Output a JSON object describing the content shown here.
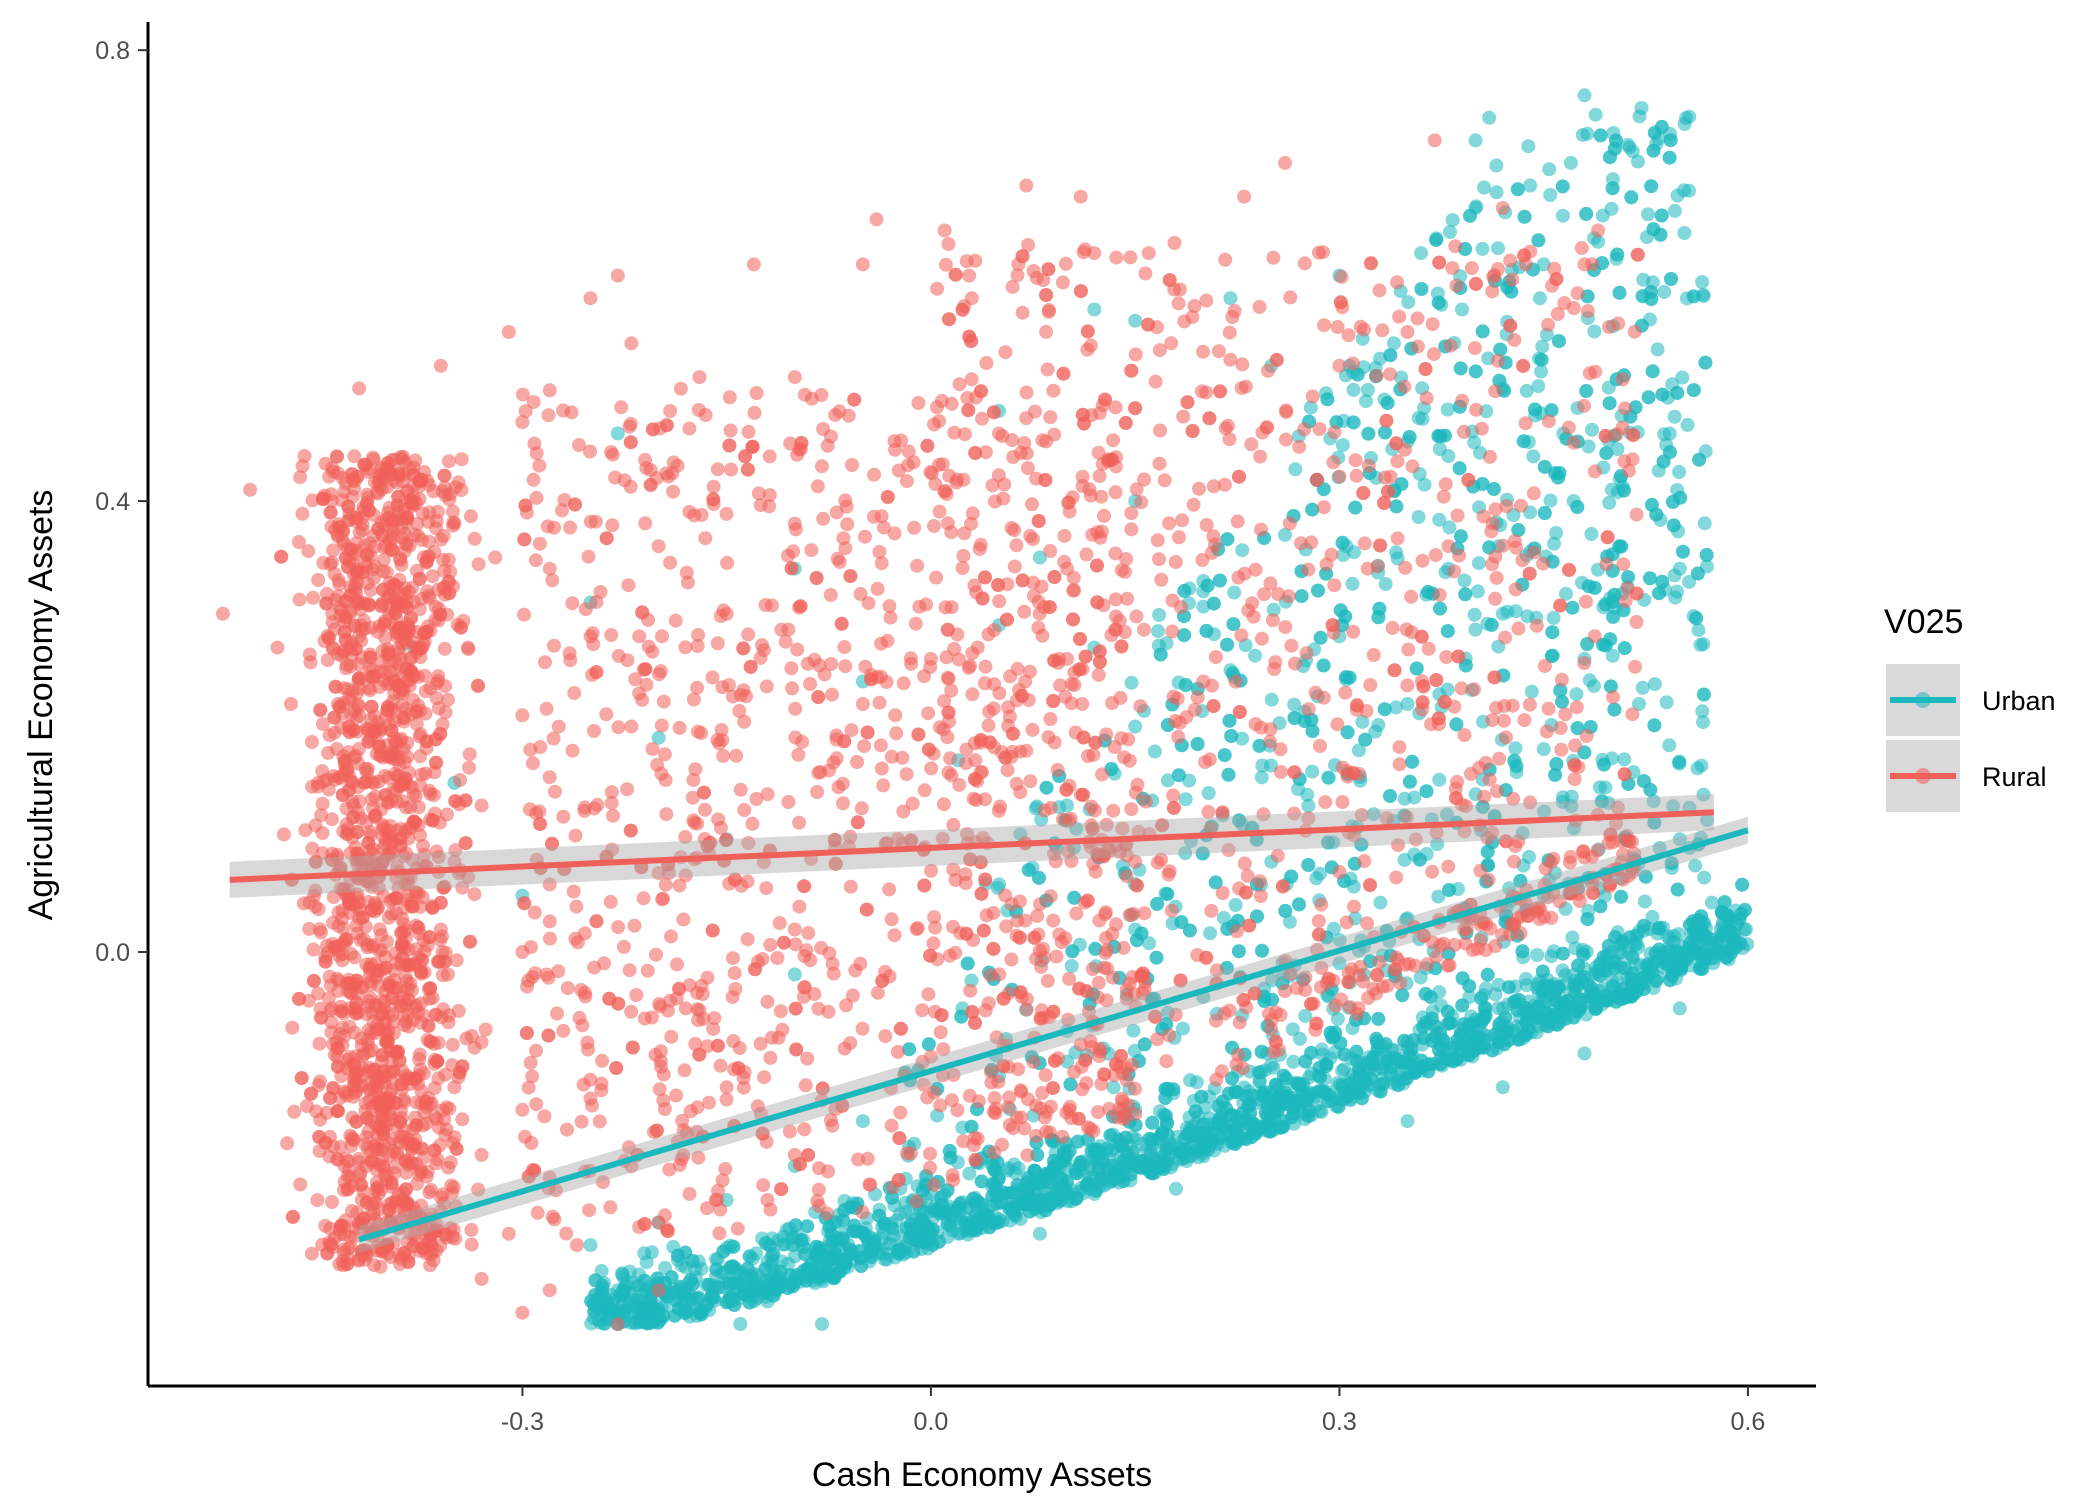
{
  "chart_data": {
    "type": "scatter",
    "title": "",
    "xlabel": "Cash Economy Assets",
    "ylabel": "Agricultural Economy Assets",
    "xlim": [
      -0.575,
      0.65
    ],
    "ylim": [
      -0.385,
      0.825
    ],
    "x_ticks": [
      -0.3,
      0.0,
      0.3,
      0.6
    ],
    "x_tick_labels": [
      "-0.3",
      "0.0",
      "0.3",
      "0.6"
    ],
    "y_ticks": [
      0.0,
      0.4,
      0.8
    ],
    "y_tick_labels": [
      "0.0",
      "0.4",
      "0.8"
    ],
    "grid": false,
    "legend": {
      "title": "V025",
      "position": "right",
      "entries": [
        "Urban",
        "Rural"
      ]
    },
    "point_alpha": 0.55,
    "series": [
      {
        "name": "Urban",
        "color": "#1bb8bd",
        "approx_points": 3600,
        "points_sample": [
          [
            0.48,
            0.76
          ],
          [
            0.41,
            0.74
          ],
          [
            0.4,
            0.72
          ],
          [
            0.47,
            0.7
          ],
          [
            0.44,
            0.68
          ],
          [
            0.4,
            0.66
          ],
          [
            0.49,
            0.63
          ],
          [
            0.36,
            0.62
          ],
          [
            0.45,
            0.61
          ],
          [
            0.3,
            0.6
          ],
          [
            0.39,
            0.57
          ],
          [
            0.22,
            0.58
          ],
          [
            0.34,
            0.54
          ],
          [
            0.12,
            0.57
          ],
          [
            0.15,
            0.56
          ],
          [
            0.42,
            0.5
          ],
          [
            0.25,
            0.52
          ],
          [
            0.31,
            0.47
          ],
          [
            0.54,
            0.45
          ],
          [
            0.38,
            0.44
          ],
          [
            -0.23,
            0.46
          ],
          [
            0.05,
            0.48
          ],
          [
            0.34,
            0.41
          ],
          [
            0.5,
            0.41
          ],
          [
            0.15,
            0.4
          ],
          [
            0.44,
            0.39
          ],
          [
            0.26,
            0.37
          ],
          [
            0.08,
            0.35
          ],
          [
            -0.1,
            0.34
          ],
          [
            0.38,
            0.34
          ],
          [
            0.55,
            0.34
          ],
          [
            0.2,
            0.32
          ],
          [
            -0.25,
            0.31
          ],
          [
            0.42,
            0.3
          ],
          [
            0.05,
            0.29
          ],
          [
            0.3,
            0.28
          ],
          [
            0.12,
            0.27
          ],
          [
            -0.38,
            0.27
          ],
          [
            0.48,
            0.26
          ],
          [
            0.22,
            0.25
          ],
          [
            -0.05,
            0.24
          ],
          [
            0.35,
            0.22
          ],
          [
            0.52,
            0.22
          ],
          [
            0.15,
            0.2
          ],
          [
            -0.2,
            0.19
          ],
          [
            0.45,
            0.18
          ],
          [
            0.02,
            0.17
          ],
          [
            0.28,
            0.16
          ],
          [
            -0.35,
            0.15
          ],
          [
            0.4,
            0.14
          ],
          [
            0.1,
            0.13
          ],
          [
            0.55,
            0.1
          ],
          [
            -0.15,
            0.1
          ],
          [
            0.25,
            0.08
          ],
          [
            0.05,
            0.06
          ],
          [
            0.45,
            0.05
          ],
          [
            -0.3,
            0.05
          ],
          [
            0.35,
            0.03
          ],
          [
            0.15,
            0.02
          ],
          [
            0.58,
            0.02
          ],
          [
            0.5,
            0.0
          ],
          [
            0.3,
            -0.01
          ],
          [
            -0.1,
            -0.02
          ],
          [
            0.45,
            -0.03
          ],
          [
            0.2,
            -0.04
          ],
          [
            0.55,
            -0.05
          ],
          [
            0.4,
            -0.06
          ],
          [
            0.1,
            -0.07
          ],
          [
            0.35,
            -0.08
          ],
          [
            0.48,
            -0.09
          ],
          [
            0.25,
            -0.1
          ],
          [
            0.05,
            -0.11
          ],
          [
            0.42,
            -0.12
          ],
          [
            0.3,
            -0.13
          ],
          [
            0.15,
            -0.14
          ],
          [
            -0.05,
            -0.15
          ],
          [
            0.2,
            -0.16
          ],
          [
            0.35,
            -0.15
          ],
          [
            0.1,
            -0.18
          ],
          [
            -0.1,
            -0.19
          ],
          [
            0.05,
            -0.2
          ],
          [
            0.18,
            -0.21
          ],
          [
            -0.15,
            -0.22
          ],
          [
            0.0,
            -0.23
          ],
          [
            -0.2,
            -0.24
          ],
          [
            0.08,
            -0.25
          ],
          [
            -0.25,
            -0.26
          ],
          [
            -0.1,
            -0.27
          ],
          [
            -0.18,
            -0.28
          ],
          [
            -0.08,
            -0.29
          ],
          [
            -0.12,
            -0.31
          ],
          [
            -0.2,
            -0.32
          ],
          [
            -0.14,
            -0.33
          ],
          [
            -0.08,
            -0.33
          ],
          [
            -0.23,
            -0.3
          ]
        ],
        "trend": {
          "x": [
            -0.42,
            0.6
          ],
          "y": [
            -0.255,
            0.108
          ]
        }
      },
      {
        "name": "Rural",
        "color": "#f0605a",
        "approx_points": 4300,
        "points_sample": [
          [
            0.37,
            0.72
          ],
          [
            0.26,
            0.7
          ],
          [
            0.07,
            0.68
          ],
          [
            0.11,
            0.67
          ],
          [
            0.23,
            0.67
          ],
          [
            0.42,
            0.66
          ],
          [
            -0.04,
            0.65
          ],
          [
            0.49,
            0.64
          ],
          [
            0.01,
            0.64
          ],
          [
            0.12,
            0.62
          ],
          [
            0.16,
            0.62
          ],
          [
            -0.13,
            0.61
          ],
          [
            -0.05,
            0.61
          ],
          [
            0.48,
            0.61
          ],
          [
            -0.23,
            0.6
          ],
          [
            0.06,
            0.59
          ],
          [
            -0.25,
            0.58
          ],
          [
            0.03,
            0.58
          ],
          [
            0.35,
            0.55
          ],
          [
            -0.31,
            0.55
          ],
          [
            -0.22,
            0.54
          ],
          [
            -0.42,
            0.5
          ],
          [
            -0.36,
            0.52
          ],
          [
            -0.17,
            0.51
          ],
          [
            -0.1,
            0.51
          ],
          [
            0.3,
            0.52
          ],
          [
            -0.46,
            0.44
          ],
          [
            -0.38,
            0.43
          ],
          [
            -0.3,
            0.47
          ],
          [
            0.05,
            0.46
          ],
          [
            -0.5,
            0.41
          ],
          [
            -0.44,
            0.4
          ],
          [
            -0.35,
            0.38
          ],
          [
            -0.4,
            0.36
          ],
          [
            -0.32,
            0.35
          ],
          [
            -0.52,
            0.3
          ],
          [
            -0.45,
            0.33
          ],
          [
            -0.37,
            0.32
          ],
          [
            -0.28,
            0.34
          ],
          [
            -0.2,
            0.36
          ],
          [
            -0.1,
            0.38
          ],
          [
            0.1,
            0.34
          ],
          [
            0.38,
            0.36
          ],
          [
            -0.48,
            0.27
          ],
          [
            -0.42,
            0.28
          ],
          [
            -0.34,
            0.27
          ],
          [
            -0.25,
            0.28
          ],
          [
            -0.15,
            0.3
          ],
          [
            0.0,
            0.26
          ],
          [
            0.2,
            0.24
          ],
          [
            -0.47,
            0.22
          ],
          [
            -0.39,
            0.23
          ],
          [
            -0.3,
            0.21
          ],
          [
            -0.22,
            0.2
          ],
          [
            -0.05,
            0.22
          ],
          [
            -0.45,
            0.15
          ],
          [
            -0.38,
            0.14
          ],
          [
            -0.33,
            0.13
          ],
          [
            -0.27,
            0.12
          ],
          [
            -0.12,
            0.14
          ],
          [
            -0.4,
            0.1
          ],
          [
            -0.35,
            0.08
          ],
          [
            -0.28,
            0.06
          ],
          [
            -0.2,
            0.07
          ],
          [
            0.15,
            0.08
          ],
          [
            -0.42,
            0.03
          ],
          [
            -0.36,
            0.02
          ],
          [
            -0.3,
            0.0
          ],
          [
            -0.24,
            -0.01
          ],
          [
            -0.1,
            0.02
          ],
          [
            -0.44,
            -0.05
          ],
          [
            -0.38,
            -0.06
          ],
          [
            -0.33,
            -0.08
          ],
          [
            -0.27,
            -0.07
          ],
          [
            -0.18,
            -0.05
          ],
          [
            -0.4,
            -0.11
          ],
          [
            -0.35,
            -0.12
          ],
          [
            -0.3,
            -0.14
          ],
          [
            -0.25,
            -0.13
          ],
          [
            -0.15,
            -0.12
          ],
          [
            -0.38,
            -0.17
          ],
          [
            -0.33,
            -0.18
          ],
          [
            -0.28,
            -0.2
          ],
          [
            -0.22,
            -0.19
          ],
          [
            -0.1,
            -0.18
          ],
          [
            -0.36,
            -0.23
          ],
          [
            -0.31,
            -0.25
          ],
          [
            -0.26,
            -0.26
          ],
          [
            -0.2,
            -0.24
          ],
          [
            -0.12,
            -0.22
          ],
          [
            -0.33,
            -0.29
          ],
          [
            -0.28,
            -0.3
          ],
          [
            -0.23,
            -0.33
          ],
          [
            -0.3,
            -0.32
          ],
          [
            -0.2,
            -0.3
          ]
        ],
        "trend": {
          "x": [
            -0.515,
            0.575
          ],
          "y": [
            0.064,
            0.124
          ]
        }
      }
    ]
  }
}
